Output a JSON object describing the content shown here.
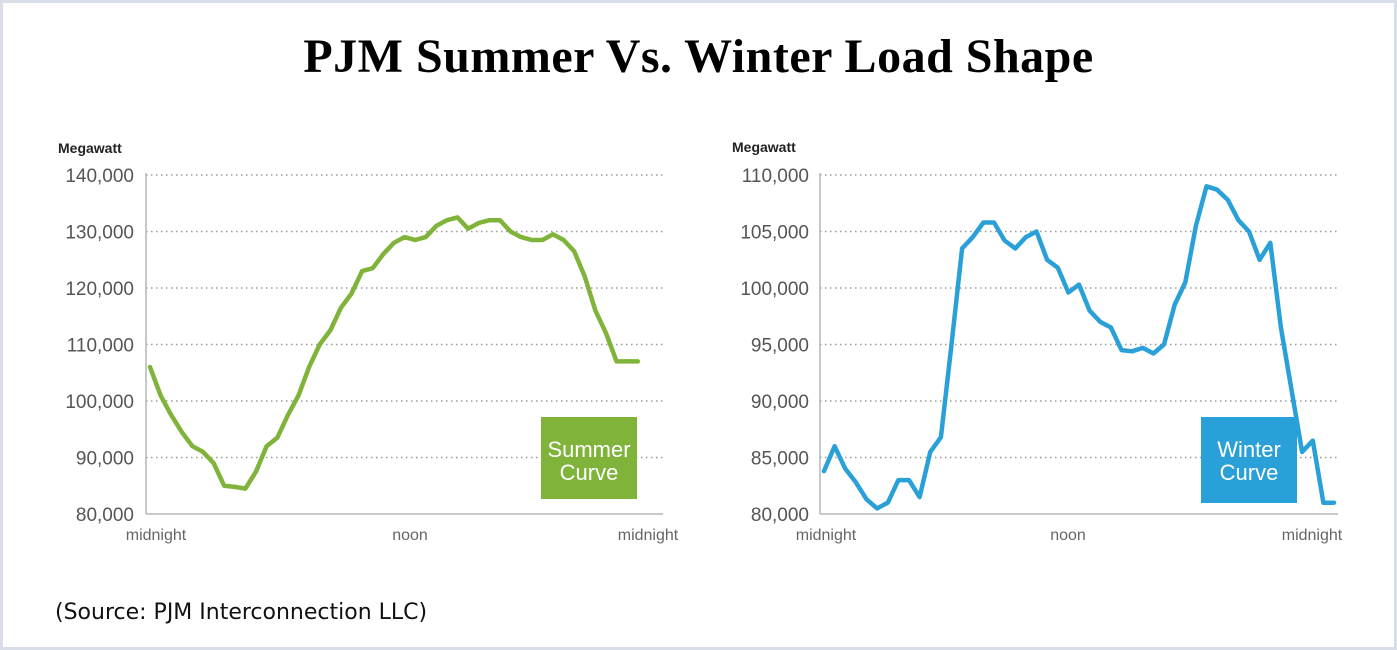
{
  "title": "PJM Summer Vs. Winter Load Shape",
  "source": "(Source: PJM Interconnection LLC)",
  "chart_data": [
    {
      "type": "line",
      "name": "summer",
      "ylabel": "Megawatt",
      "ylim": [
        80000,
        140000
      ],
      "yticks": [
        80000,
        90000,
        100000,
        110000,
        120000,
        130000,
        140000
      ],
      "ytick_labels": [
        "80,000",
        "90,000",
        "100,000",
        "110,000",
        "120,000",
        "130,000",
        "140,000"
      ],
      "xlim": [
        0,
        24
      ],
      "xticks": [
        0,
        12,
        24
      ],
      "xtick_labels": [
        "midnight",
        "noon",
        "midnight"
      ],
      "grid": "horizontal dotted",
      "color": "#7fb33a",
      "legend": {
        "lines": [
          "Summer",
          "Curve"
        ],
        "position": "bottom-right",
        "color": "#7fb33a"
      },
      "series": [
        {
          "name": "Summer Curve",
          "x": [
            0,
            0.5,
            1,
            1.5,
            2,
            2.5,
            3,
            3.5,
            4,
            4.5,
            5,
            5.5,
            6,
            6.5,
            7,
            7.5,
            8,
            8.5,
            9,
            9.5,
            10,
            10.5,
            11,
            11.5,
            12,
            12.5,
            13,
            13.5,
            14,
            14.5,
            15,
            15.5,
            16,
            16.5,
            17,
            17.5,
            18,
            18.5,
            19,
            19.5,
            20,
            20.5,
            21,
            21.5,
            22,
            22.5,
            23
          ],
          "values": [
            106000,
            101000,
            97500,
            94500,
            92000,
            91000,
            89000,
            85000,
            84800,
            84500,
            87500,
            92000,
            93500,
            97500,
            101000,
            106000,
            110000,
            112500,
            116500,
            119000,
            123000,
            123500,
            126000,
            128000,
            129000,
            128500,
            129000,
            131000,
            132000,
            132500,
            130500,
            131500,
            132000,
            132000,
            130000,
            129000,
            128500,
            128500,
            129500,
            128500,
            126500,
            122000,
            116000,
            112000,
            107000,
            107000,
            107000
          ]
        }
      ]
    },
    {
      "type": "line",
      "name": "winter",
      "ylabel": "Megawatt",
      "ylim": [
        80000,
        110000
      ],
      "yticks": [
        80000,
        85000,
        90000,
        95000,
        100000,
        105000,
        110000
      ],
      "ytick_labels": [
        "80,000",
        "85,000",
        "90,000",
        "95,000",
        "100,000",
        "105,000",
        "110,000"
      ],
      "xlim": [
        0,
        24
      ],
      "xticks": [
        0,
        12,
        24
      ],
      "xtick_labels": [
        "midnight",
        "noon",
        "midnight"
      ],
      "grid": "horizontal dotted",
      "color": "#2aa0d8",
      "legend": {
        "lines": [
          "Winter",
          "Curve"
        ],
        "position": "bottom-right",
        "color": "#2aa0d8"
      },
      "series": [
        {
          "name": "Winter Curve",
          "x": [
            0,
            0.5,
            1,
            1.5,
            2,
            2.5,
            3,
            3.5,
            4,
            4.5,
            5,
            5.5,
            6,
            6.5,
            7,
            7.5,
            8,
            8.5,
            9,
            9.5,
            10,
            10.5,
            11,
            11.5,
            12,
            12.5,
            13,
            13.5,
            14,
            14.5,
            15,
            15.5,
            16,
            16.5,
            17,
            17.5,
            18,
            18.5,
            19,
            19.5,
            20,
            20.5,
            21,
            21.5,
            22,
            22.5,
            23,
            23.5,
            24
          ],
          "values": [
            83800,
            86000,
            84000,
            82800,
            81300,
            80500,
            81000,
            83000,
            83000,
            81500,
            85500,
            86800,
            95000,
            103500,
            104500,
            105800,
            105800,
            104200,
            103500,
            104500,
            105000,
            102500,
            101800,
            99600,
            100300,
            98000,
            97000,
            96500,
            94500,
            94400,
            94700,
            94200,
            95000,
            98500,
            100500,
            105500,
            109000,
            108700,
            107800,
            106000,
            105000,
            102500,
            104000,
            96500,
            91000,
            85500,
            86500,
            81000,
            81000
          ]
        }
      ]
    }
  ]
}
